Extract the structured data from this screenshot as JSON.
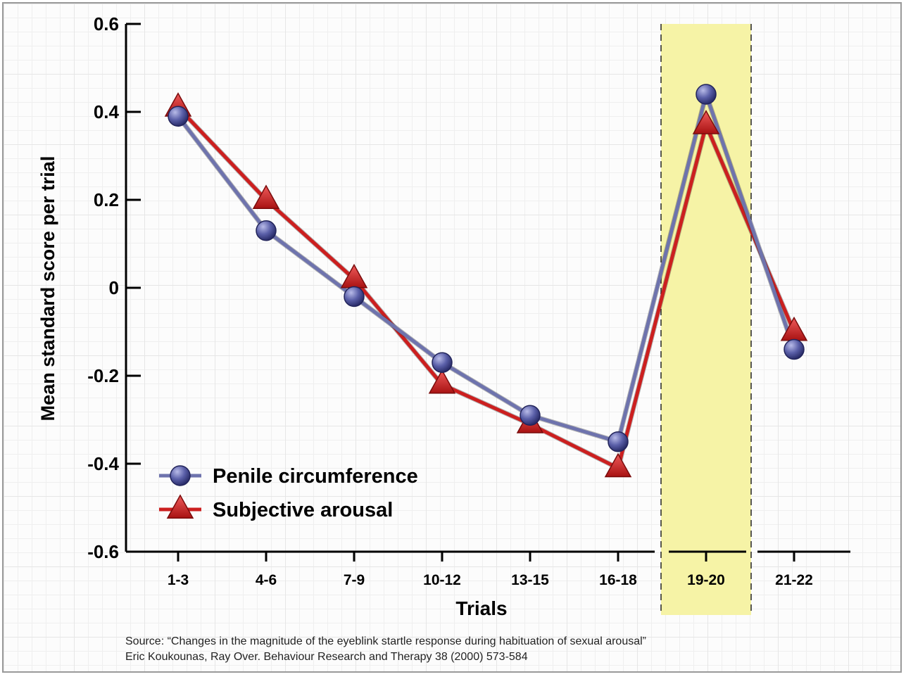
{
  "chart_data": {
    "type": "line",
    "xlabel": "Trials",
    "ylabel": "Mean standard score per trial",
    "categories": [
      "1-3",
      "4-6",
      "7-9",
      "10-12",
      "13-15",
      "16-18",
      "19-20",
      "21-22"
    ],
    "ylim": [
      -0.6,
      0.6
    ],
    "yticks": [
      0.6,
      0.4,
      0.2,
      0,
      -0.2,
      -0.4,
      -0.6
    ],
    "ytick_labels": [
      "0.6",
      "0.4",
      "0.2",
      "0",
      "-0.2",
      "-0.4",
      "-0.6"
    ],
    "highlight_category": "19-20",
    "legend_position": "bottom-left",
    "grid": false,
    "series": [
      {
        "name": "Penile circumference",
        "marker": "circle",
        "color": "#5a5fa8",
        "line_color": "#6e73ad",
        "values": [
          0.39,
          0.13,
          -0.02,
          -0.17,
          -0.29,
          -0.35,
          0.44,
          -0.14
        ]
      },
      {
        "name": "Subjective arousal",
        "marker": "triangle",
        "color": "#cc1f1f",
        "line_color": "#cc1f1f",
        "values": [
          0.41,
          0.2,
          0.02,
          -0.22,
          -0.31,
          -0.41,
          0.37,
          -0.1
        ]
      }
    ]
  },
  "source": {
    "line1": "Source: “Changes in the magnitude of the eyeblink startle response during habituation of sexual arousal”",
    "line2": "Eric Koukounas, Ray Over. Behaviour Research and Therapy 38 (2000) 573-584"
  },
  "colors": {
    "highlight": "#f6f3a6",
    "axis": "#000000"
  }
}
